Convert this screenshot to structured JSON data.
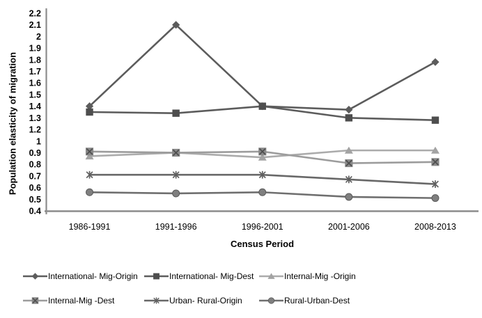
{
  "chart_data": {
    "type": "line",
    "title": "",
    "xlabel": "Census Period",
    "ylabel": "Population elasticity of migration",
    "categories": [
      "1986-1991",
      "1991-1996",
      "1996-2001",
      "2001-2006",
      "2008-2013"
    ],
    "y_tick_labels": [
      "2.2",
      "2.1",
      "2",
      "1.9",
      "1.8",
      "1.7",
      "1.6",
      "1.5",
      "1.4",
      "1.3",
      "1.2",
      "1",
      "0.9",
      "0.8",
      "0.7",
      "0.6",
      "0.5",
      "0.4"
    ],
    "y_tick_values": [
      2.2,
      2.1,
      2.0,
      1.9,
      1.8,
      1.7,
      1.6,
      1.5,
      1.4,
      1.3,
      1.2,
      1.0,
      0.9,
      0.8,
      0.7,
      0.6,
      0.5,
      0.4
    ],
    "ylim": [
      0.4,
      2.2
    ],
    "grid": "off",
    "legend_position": "bottom",
    "axis_color": "#8c8c8c",
    "series": [
      {
        "name": "International- Mig-Origin",
        "marker": "diamond",
        "line_color": "#5c5c5c",
        "marker_color": "#5c5c5c",
        "values": [
          1.4,
          2.1,
          1.4,
          1.37,
          1.78
        ]
      },
      {
        "name": "International- Mig-Dest",
        "marker": "square",
        "line_color": "#5c5c5c",
        "marker_color": "#4e4e4e",
        "values": [
          1.35,
          1.34,
          1.4,
          1.3,
          1.28
        ]
      },
      {
        "name": "Internal-Mig -Origin",
        "marker": "triangle",
        "line_color": "#ababab",
        "marker_color": "#a3a3a3",
        "values": [
          0.87,
          0.9,
          0.86,
          0.92,
          0.92
        ]
      },
      {
        "name": "Internal-Mig -Dest",
        "marker": "x-square",
        "line_color": "#9c9c9c",
        "marker_color": "#8a8a8a",
        "marker_accent": "#4f4f4f",
        "values": [
          0.91,
          0.9,
          0.91,
          0.81,
          0.82
        ]
      },
      {
        "name": "Urban- Rural-Origin",
        "marker": "asterisk",
        "line_color": "#686868",
        "marker_color": "#5f5f5f",
        "values": [
          0.71,
          0.71,
          0.71,
          0.67,
          0.63
        ]
      },
      {
        "name": "Rural-Urban-Dest",
        "marker": "circle",
        "line_color": "#6f6f6f",
        "marker_color": "#7f7f7f",
        "marker_accent": "#5a5a5a",
        "values": [
          0.56,
          0.55,
          0.56,
          0.52,
          0.51
        ]
      }
    ]
  }
}
